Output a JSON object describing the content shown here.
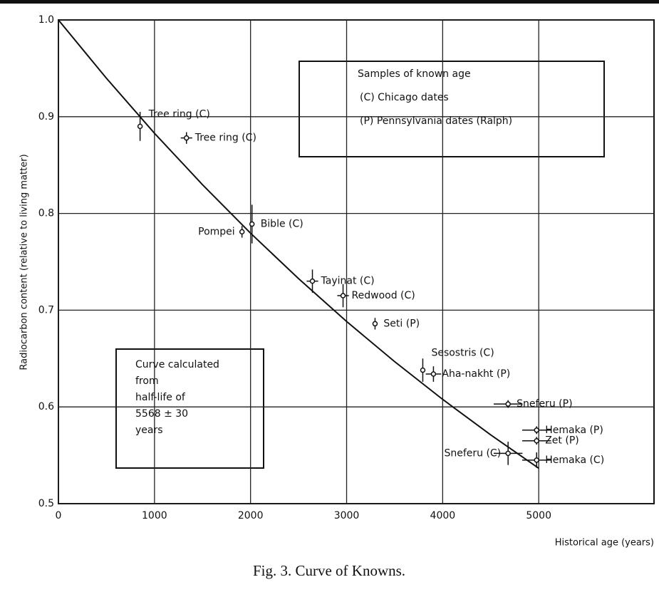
{
  "chart_data": {
    "type": "scatter",
    "caption": "Fig. 3. Curve of Knowns.",
    "x_label": "Historical age (years)",
    "y_label": "Radiocarbon content (relative to living matter)",
    "xlim": [
      0,
      6200
    ],
    "ylim": [
      0.5,
      1.0
    ],
    "xticks": [
      0,
      1000,
      2000,
      3000,
      4000,
      5000
    ],
    "yticks": [
      0.5,
      0.6,
      0.7,
      0.8,
      0.9,
      {
        "value": 1,
        "label": "1.0"
      }
    ],
    "grid": true,
    "legend_lines": [
      "Samples of known age",
      "(C) Chicago dates",
      "(P) Pennsylvania dates (Ralph)"
    ],
    "note_lines": [
      "Curve calculated",
      "from",
      "half-life of",
      "5568 ± 30",
      "years"
    ],
    "curve": {
      "x": [
        0,
        500,
        1000,
        1500,
        2000,
        2500,
        3000,
        3500,
        4000,
        4500,
        5000
      ],
      "y": [
        1,
        0.9397,
        0.8829,
        0.8297,
        0.7796,
        0.7326,
        0.6883,
        0.6468,
        0.6078,
        0.5711,
        0.5366
      ]
    },
    "points": {
      "labels": [
        "Tree ring (C)",
        "Tree ring (C)",
        "Pompei",
        "Bible (C)",
        "Tayinat (C)",
        "Redwood (C)",
        "Seti (P)",
        "Sesostris (C)",
        "Aha-nakht (P)",
        "Sneferu (P)",
        "Hemaka (P)",
        "Zet (P)",
        "Sneferu (C)",
        "Hemaka (C)"
      ],
      "x": [
        850,
        1333,
        1911,
        2015,
        2644,
        2963,
        3296,
        3793,
        3904,
        4681,
        4978,
        4978,
        4681,
        4978
      ],
      "y": [
        0.89,
        0.878,
        0.781,
        0.789,
        0.73,
        0.715,
        0.686,
        0.638,
        0.634,
        0.603,
        0.576,
        0.565,
        0.552,
        0.545
      ],
      "yerr": [
        0.015,
        0.006,
        0.006,
        0.02,
        0.012,
        0.012,
        0.006,
        0.012,
        0.008,
        0.004,
        0.004,
        0.004,
        0.012,
        0.008
      ],
      "xerr": [
        null,
        60,
        null,
        null,
        60,
        60,
        null,
        null,
        80,
        150,
        150,
        150,
        150,
        150
      ]
    }
  }
}
